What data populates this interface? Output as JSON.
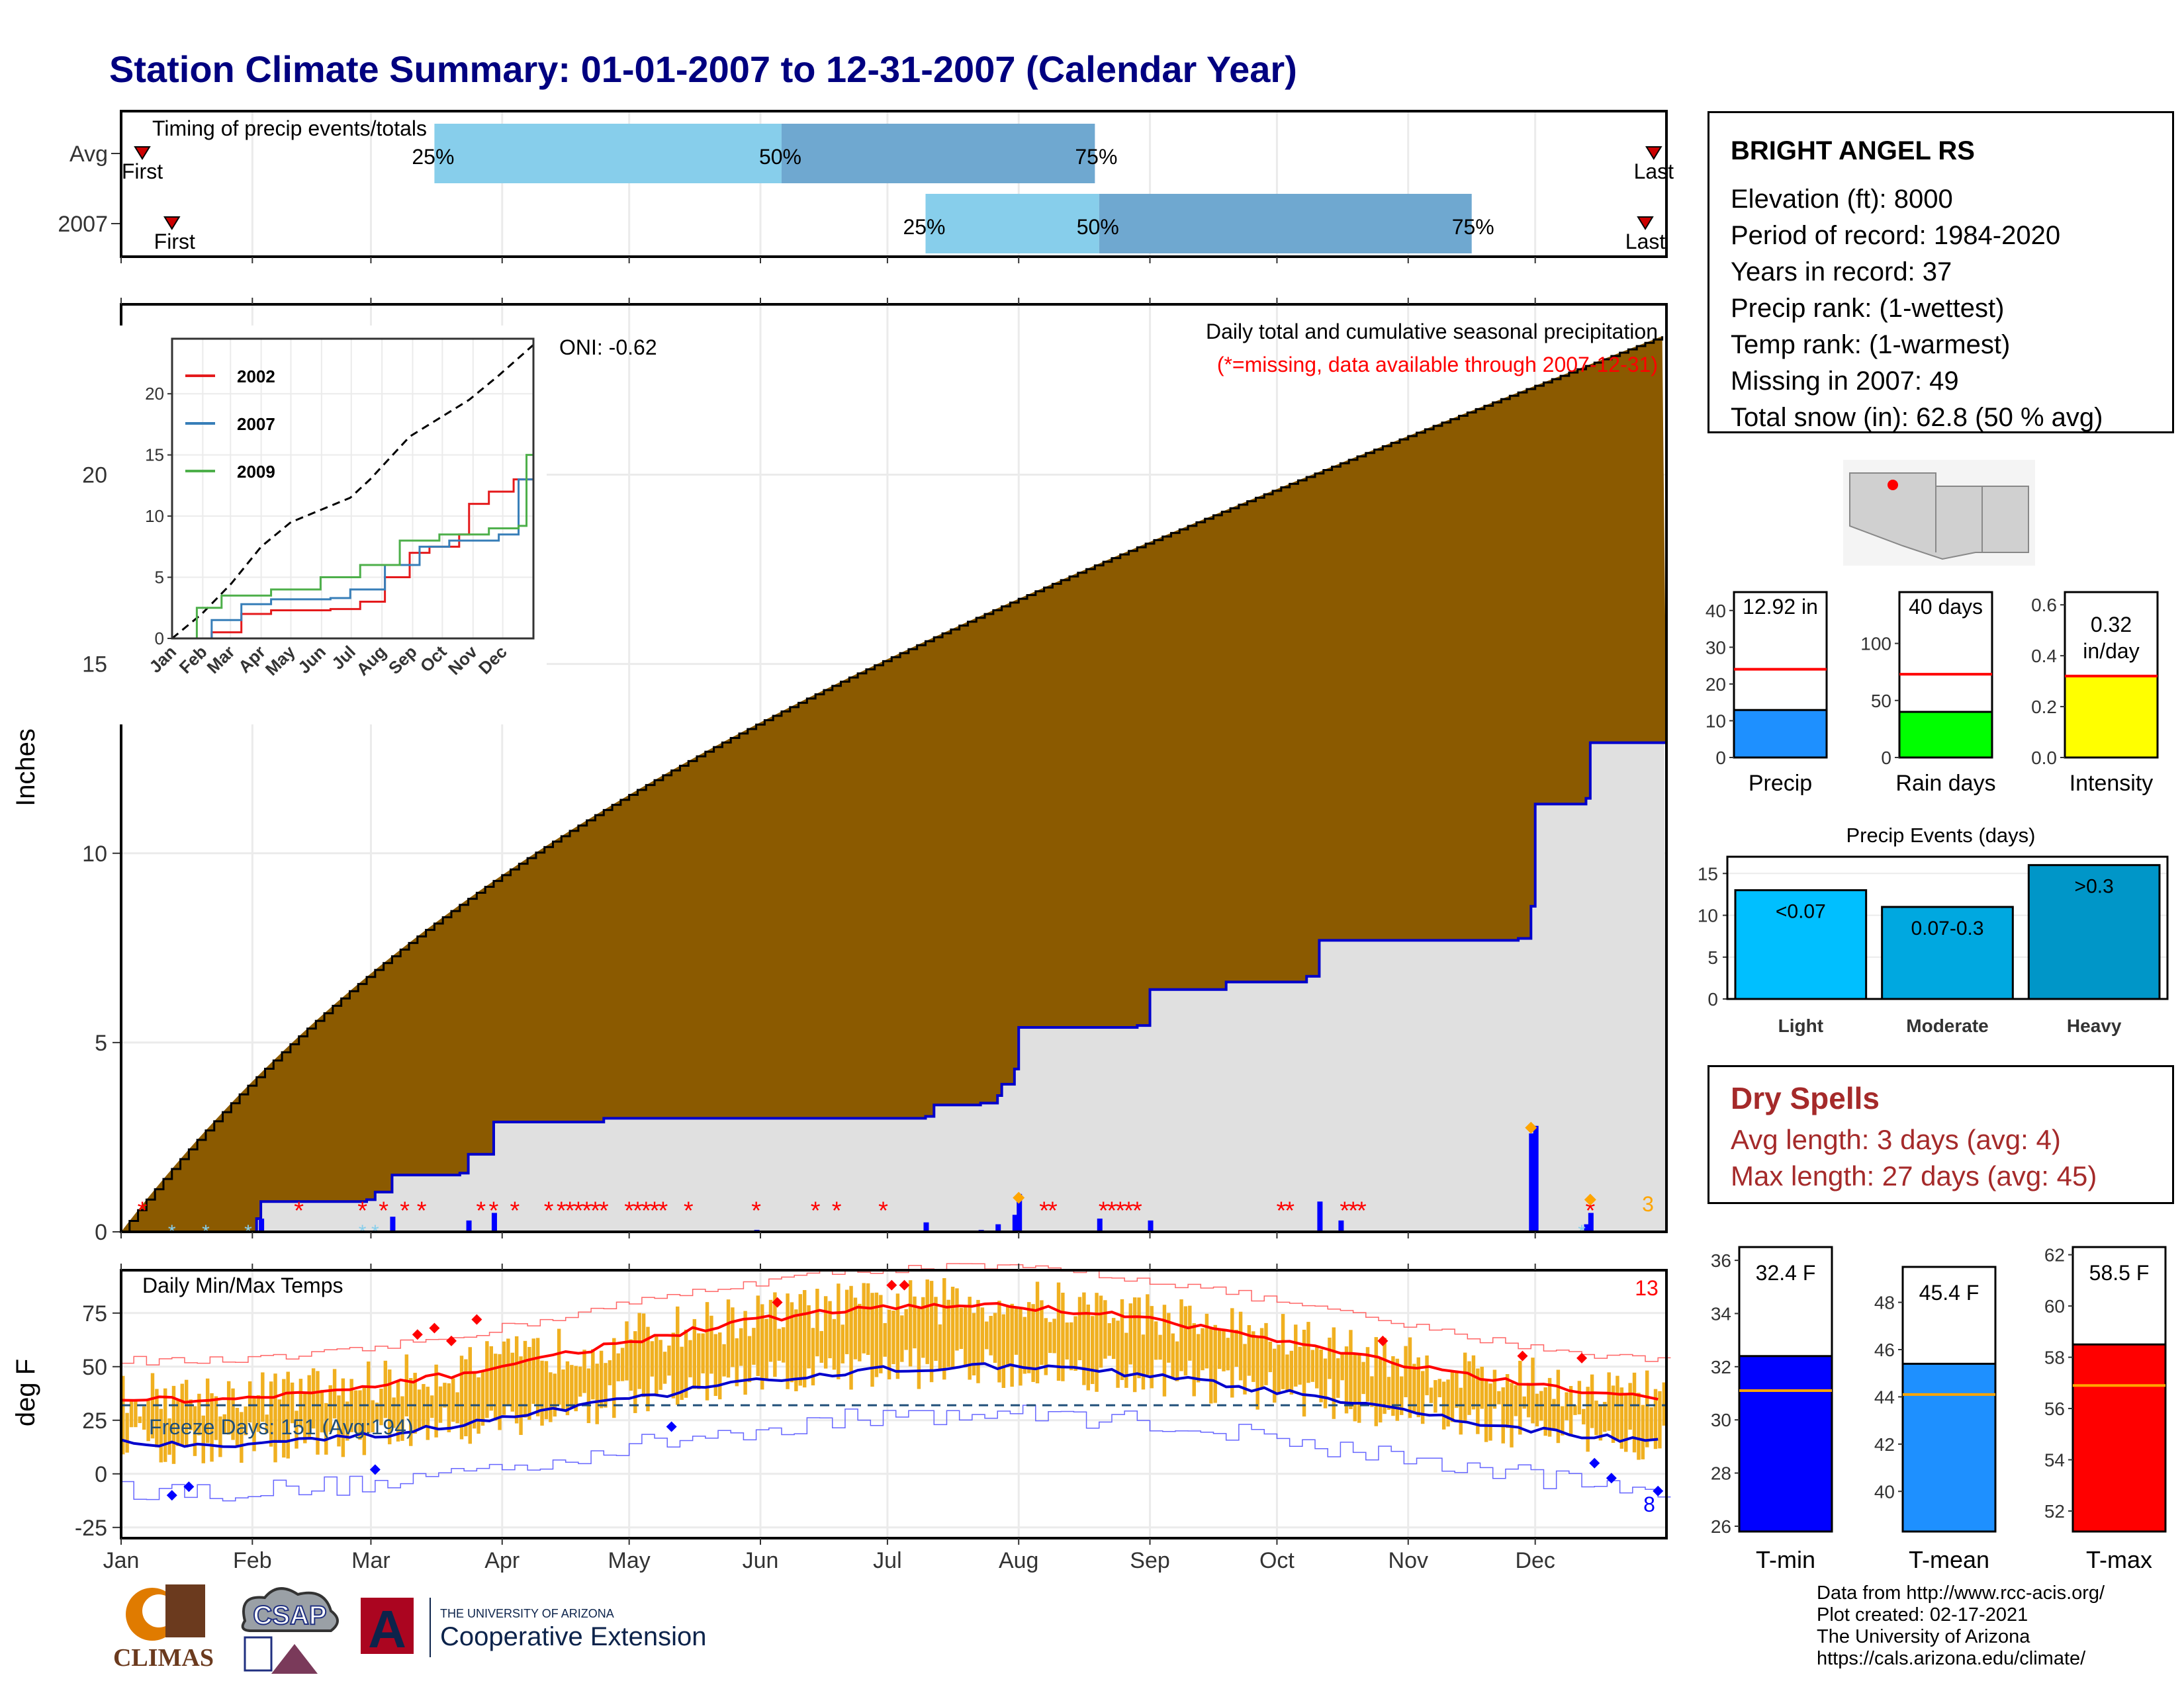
{
  "title": "Station Climate Summary: 01-01-2007 to 12-31-2007 (Calendar Year)",
  "colors": {
    "title": "#000080",
    "precip_fill": "#8B5A00",
    "avg_fill": "#E0E0E0",
    "cum_line": "#0000CC",
    "missing": "#FF0000",
    "tmax_avg": "#FF0000",
    "tmin_avg": "#0000CC",
    "range_bar": "#F0B020",
    "light_blue": "#87CEEB",
    "mid_blue": "#6FA8D0",
    "dry_spell": "#A52A2A"
  },
  "months": [
    "Jan",
    "Feb",
    "Mar",
    "Apr",
    "May",
    "Jun",
    "Jul",
    "Aug",
    "Sep",
    "Oct",
    "Nov",
    "Dec"
  ],
  "timing": {
    "title": "Timing of precip events/totals",
    "rows": [
      {
        "label": "Avg",
        "first": "First",
        "last": "Last",
        "first_day": 5,
        "last_day": 362,
        "p25": 74,
        "p50": 156,
        "p75": 230,
        "p25_label": "25%",
        "p50_label": "50%",
        "p75_label": "75%"
      },
      {
        "label": "2007",
        "first": "First",
        "last": "Last",
        "first_day": 12,
        "last_day": 360,
        "p25": 190,
        "p50": 231,
        "p75": 319,
        "p25_label": "25%",
        "p50_label": "50%",
        "p75_label": "75%"
      }
    ]
  },
  "precip_panel": {
    "ylabel": "Inches",
    "yticks": [
      0,
      5,
      10,
      15,
      20
    ],
    "ylim": [
      0,
      24.5
    ],
    "annotation_title": "Daily total and cumulative seasonal precipitation",
    "annotation_missing": "(*=missing, data available through 2007-12-31)",
    "oni": "ONI: -0.62",
    "corner_count": "3"
  },
  "inset": {
    "yticks": [
      0,
      5,
      10,
      15,
      20
    ],
    "xticks": [
      "Jan",
      "Feb",
      "Mar",
      "Apr",
      "May",
      "Jun",
      "Jul",
      "Aug",
      "Sep",
      "Oct",
      "Nov",
      "Dec"
    ],
    "series": [
      {
        "name": "2002",
        "color": "#E41A1C"
      },
      {
        "name": "2007",
        "color": "#377EB8"
      },
      {
        "name": "2009",
        "color": "#4DAF4A"
      }
    ]
  },
  "temp_panel": {
    "ylabel": "deg F",
    "title": "Daily Min/Max Temps",
    "yticks": [
      -25,
      0,
      25,
      50,
      75
    ],
    "ylim": [
      -30,
      95
    ],
    "freeze_text": "Freeze Days: 151 (Avg:194)",
    "count_high": "13",
    "count_low": "8"
  },
  "station": {
    "name": "BRIGHT ANGEL RS",
    "lines": [
      "Elevation (ft): 8000",
      "Period of record: 1984-2020",
      "Years in record: 37",
      "Precip rank:  (1-wettest)",
      "Temp rank:  (1-warmest)",
      "Missing in 2007: 49",
      "Total snow (in): 62.8 (50 % avg)"
    ]
  },
  "summary_bars": [
    {
      "label": "Precip",
      "value_label": "12.92 in",
      "value": 12.92,
      "avg": 24,
      "ymax": 45,
      "yticks": [
        "0",
        "10",
        "20",
        "30",
        "40"
      ],
      "tickvals": [
        0,
        10,
        20,
        30,
        40
      ],
      "color": "#1E90FF"
    },
    {
      "label": "Rain days",
      "value_label": "40 days",
      "value": 40,
      "avg": 73,
      "ymax": 145,
      "yticks": [
        "0",
        "50",
        "100"
      ],
      "tickvals": [
        0,
        50,
        100
      ],
      "color": "#00FF00"
    },
    {
      "label": "Intensity",
      "value_label": "0.32",
      "value_label2": "in/day",
      "value": 0.32,
      "avg": 0.32,
      "ymax": 0.65,
      "yticks": [
        "0.0",
        "0.2",
        "0.4",
        "0.6"
      ],
      "tickvals": [
        0,
        0.2,
        0.4,
        0.6
      ],
      "color": "#FFFF00"
    }
  ],
  "events": {
    "title": "Precip Events (days)",
    "yticks": [
      0,
      5,
      10,
      15
    ],
    "ymax": 17,
    "bars": [
      {
        "label": "Light",
        "value": 13,
        "value_label": "<0.07",
        "color": "#00BFFF"
      },
      {
        "label": "Moderate",
        "value": 11,
        "value_label": "0.07-0.3",
        "color": "#00A8E0"
      },
      {
        "label": "Heavy",
        "value": 16,
        "value_label": ">0.3",
        "color": "#0096C8"
      }
    ]
  },
  "dry_spells": {
    "title": "Dry Spells",
    "avg_line": "Avg length: 3 days (avg: 4)",
    "max_line": "Max length: 27 days (avg: 45)"
  },
  "temp_bars": [
    {
      "label": "T-min",
      "value_label": "32.4 F",
      "value": 32.4,
      "avg": 31.1,
      "ymin": 25.8,
      "ymax": 36.5,
      "yticks": [
        26,
        28,
        30,
        32,
        34,
        36
      ],
      "color": "#0000FF"
    },
    {
      "label": "T-mean",
      "value_label": "45.4 F",
      "value": 45.4,
      "avg": 44.1,
      "ymin": 38.3,
      "ymax": 49.5,
      "yticks": [
        40,
        42,
        44,
        46,
        48
      ],
      "color": "#1E90FF"
    },
    {
      "label": "T-max",
      "value_label": "58.5 F",
      "value": 58.5,
      "avg": 56.9,
      "ymin": 51.2,
      "ymax": 62.3,
      "yticks": [
        52,
        54,
        56,
        58,
        60,
        62
      ],
      "color": "#FF0000"
    }
  ],
  "credits": [
    "Data from http://www.rcc-acis.org/",
    "Plot created: 02-17-2021",
    "The University of Arizona",
    "https://cals.arizona.edu/climate/"
  ],
  "logos": {
    "climas": "CLIMAS",
    "csap": "CSAP",
    "ua_small": "THE UNIVERSITY OF ARIZONA",
    "ua_big": "Cooperative Extension"
  }
}
